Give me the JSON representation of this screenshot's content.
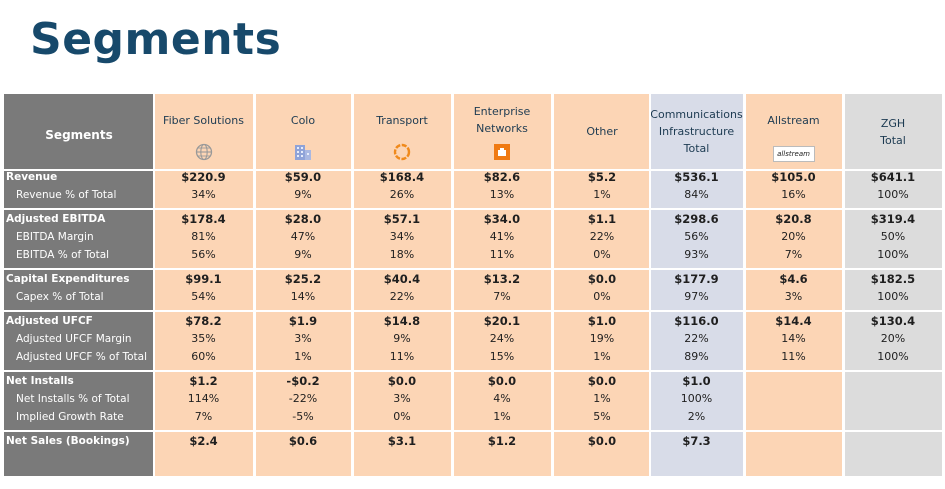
{
  "title": "Segments",
  "header": {
    "label": "Segments",
    "columns": [
      {
        "lines": [
          "Fiber Solutions"
        ],
        "icon": "globe-icon"
      },
      {
        "lines": [
          "Colo"
        ],
        "icon": "building-icon"
      },
      {
        "lines": [
          "Transport"
        ],
        "icon": "ring-icon"
      },
      {
        "lines": [
          "Enterprise",
          "Networks"
        ],
        "icon": "enterprise-icon"
      },
      {
        "lines": [
          "Other"
        ],
        "icon": ""
      },
      {
        "lines": [
          "Communications",
          "Infrastructure",
          "Total"
        ],
        "icon": ""
      },
      {
        "lines": [
          "Allstream"
        ],
        "icon": "allstream-logo",
        "logo_text": "allstream"
      },
      {
        "lines": [
          "ZGH",
          "Total"
        ],
        "icon": ""
      }
    ]
  },
  "rows": [
    {
      "label": "Revenue",
      "main": true,
      "values": [
        "$220.9",
        "$59.0",
        "$168.4",
        "$82.6",
        "$5.2",
        "$536.1",
        "$105.0",
        "$641.1"
      ]
    },
    {
      "label": "Revenue % of Total",
      "main": false,
      "values": [
        "34%",
        "9%",
        "26%",
        "13%",
        "1%",
        "84%",
        "16%",
        "100%"
      ]
    },
    {
      "label": "Adjusted EBITDA",
      "main": true,
      "values": [
        "$178.4",
        "$28.0",
        "$57.1",
        "$34.0",
        "$1.1",
        "$298.6",
        "$20.8",
        "$319.4"
      ]
    },
    {
      "label": "EBITDA Margin",
      "main": false,
      "values": [
        "81%",
        "47%",
        "34%",
        "41%",
        "22%",
        "56%",
        "20%",
        "50%"
      ]
    },
    {
      "label": "EBITDA % of Total",
      "main": false,
      "values": [
        "56%",
        "9%",
        "18%",
        "11%",
        "0%",
        "93%",
        "7%",
        "100%"
      ]
    },
    {
      "label": "Capital Expenditures",
      "main": true,
      "values": [
        "$99.1",
        "$25.2",
        "$40.4",
        "$13.2",
        "$0.0",
        "$177.9",
        "$4.6",
        "$182.5"
      ]
    },
    {
      "label": "Capex % of Total",
      "main": false,
      "values": [
        "54%",
        "14%",
        "22%",
        "7%",
        "0%",
        "97%",
        "3%",
        "100%"
      ]
    },
    {
      "label": "Adjusted UFCF",
      "main": true,
      "values": [
        "$78.2",
        "$1.9",
        "$14.8",
        "$20.1",
        "$1.0",
        "$116.0",
        "$14.4",
        "$130.4"
      ]
    },
    {
      "label": "Adjusted UFCF Margin",
      "main": false,
      "values": [
        "35%",
        "3%",
        "9%",
        "24%",
        "19%",
        "22%",
        "14%",
        "20%"
      ]
    },
    {
      "label": "Adjusted UFCF % of Total",
      "main": false,
      "values": [
        "60%",
        "1%",
        "11%",
        "15%",
        "1%",
        "89%",
        "11%",
        "100%"
      ]
    },
    {
      "label": "Net Installs",
      "main": true,
      "values": [
        "$1.2",
        "-$0.2",
        "$0.0",
        "$0.0",
        "$0.0",
        "$1.0",
        "",
        ""
      ]
    },
    {
      "label": "Net Installs % of Total",
      "main": false,
      "values": [
        "114%",
        "-22%",
        "3%",
        "4%",
        "1%",
        "100%",
        "",
        ""
      ]
    },
    {
      "label": "Implied Growth Rate",
      "main": false,
      "values": [
        "7%",
        "-5%",
        "0%",
        "1%",
        "5%",
        "2%",
        "",
        ""
      ]
    },
    {
      "label": "Net Sales (Bookings)",
      "main": true,
      "values": [
        "$2.4",
        "$0.6",
        "$3.1",
        "$1.2",
        "$0.0",
        "$7.3",
        "",
        ""
      ]
    }
  ],
  "colors": {
    "title": "#17496b",
    "label_column": "#7a7a7a",
    "segment_column": "#fcd5b5",
    "cit_column": "#d8dce8",
    "zgh_column": "#dcdcdc"
  }
}
